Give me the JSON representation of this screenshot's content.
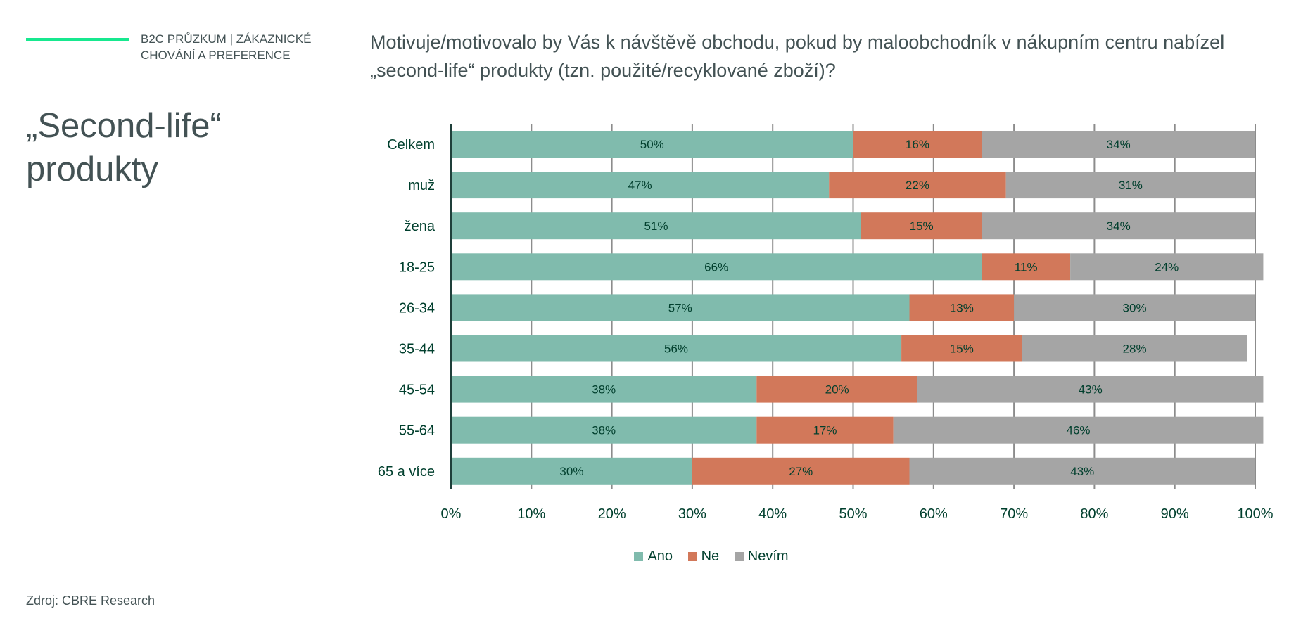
{
  "header": {
    "label": "B2C PRŮZKUM |  ZÁKAZNICKÉ\nCHOVÁNÍ A PREFERENCE"
  },
  "title": "„Second-life“\nprodukty",
  "question": "Motivuje/motivovalo by Vás k návštěvě obchodu, pokud by maloobchodník v nákupním centru nabízel „second-life“ produkty (tzn. použité/recyklované zboží)?",
  "source": "Zdroj: CBRE Research",
  "colors": {
    "accent": "#17E88F",
    "ano": "#80BBAD",
    "ne": "#D2785A",
    "nevim": "#A5A5A5",
    "dark_green": "#003F2D",
    "text_gray": "#435254"
  },
  "chart_data": {
    "type": "bar",
    "orientation": "horizontal",
    "stacked": true,
    "percent_stacked": true,
    "categories": [
      "Celkem",
      "muž",
      "žena",
      "18-25",
      "26-34",
      "35-44",
      "45-54",
      "55-64",
      "65 a více"
    ],
    "series": [
      {
        "name": "Ano",
        "color": "#80BBAD",
        "values": [
          50,
          47,
          51,
          66,
          57,
          56,
          38,
          38,
          30
        ]
      },
      {
        "name": "Ne",
        "color": "#D2785A",
        "values": [
          16,
          22,
          15,
          11,
          13,
          15,
          20,
          17,
          27
        ]
      },
      {
        "name": "Nevím",
        "color": "#A5A5A5",
        "values": [
          34,
          31,
          34,
          24,
          30,
          28,
          43,
          46,
          43
        ]
      }
    ],
    "xlim": [
      0,
      100
    ],
    "x_ticks": [
      "0%",
      "10%",
      "20%",
      "30%",
      "40%",
      "50%",
      "60%",
      "70%",
      "80%",
      "90%",
      "100%"
    ],
    "grid": true,
    "legend_position": "bottom"
  }
}
